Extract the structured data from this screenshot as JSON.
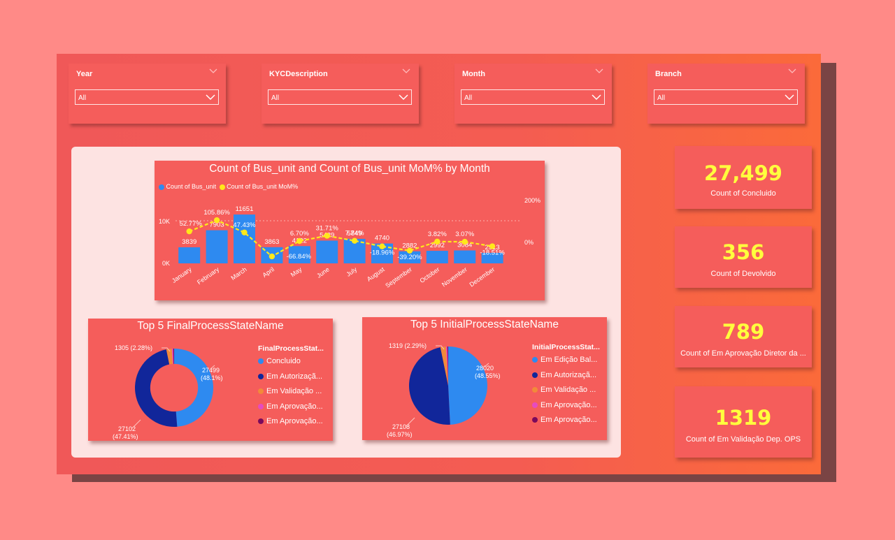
{
  "slicers": [
    {
      "title": "Year",
      "value": "All"
    },
    {
      "title": "KYCDescription",
      "value": "All"
    },
    {
      "title": "Month",
      "value": "All"
    },
    {
      "title": "Branch",
      "value": "All"
    }
  ],
  "colors": {
    "bar": "#2e8af0",
    "line": "#ffe81a",
    "dark_blue": "#11269a",
    "orange": "#f28a3a",
    "pink": "#e64bc0",
    "purple": "#7a0a5c",
    "kpi_value": "#ffff3d"
  },
  "kpis": [
    {
      "value": "27,499",
      "label": "Count of Concluido"
    },
    {
      "value": "356",
      "label": "Count of Devolvido"
    },
    {
      "value": "789",
      "label": "Count of Em Aprovação Diretor da ..."
    },
    {
      "value": "1319",
      "label": "Count of Em Validação Dep. OPS"
    }
  ],
  "combo": {
    "title": "Count of Bus_unit and Count of Bus_unit MoM% by Month",
    "legend": [
      "Count of Bus_unit",
      "Count of Bus_unit MoM%"
    ],
    "y_ticks_left": [
      "0K",
      "10K"
    ],
    "y_ticks_right": [
      "0%",
      "200%"
    ]
  },
  "pie_final": {
    "title": "Top 5 FinalProcessStateName",
    "legend_title": "FinalProcessStat...",
    "legend": [
      "Concluido",
      "Em Autorizaçã...",
      "Em Validação ...",
      "Em Aprovação...",
      "Em Aprovação..."
    ],
    "labels": {
      "a1": "27499",
      "a2": "(48.1%)",
      "b1": "27102",
      "b2": "(47.41%)",
      "c": "1305 (2.28%)"
    }
  },
  "pie_initial": {
    "title": "Top 5 InitialProcessStateName",
    "legend_title": "InitialProcessStat...",
    "legend": [
      "Em Edição Bal...",
      "Em Autorizaçã...",
      "Em Validação ...",
      "Em Aprovação...",
      "Em Aprovação..."
    ],
    "labels": {
      "a1": "28020",
      "a2": "(48.55%)",
      "b1": "27108",
      "b2": "(46.97%)",
      "c": "1319 (2.29%)"
    }
  },
  "chart_data": [
    {
      "type": "bar",
      "title": "Count of Bus_unit and Count of Bus_unit MoM% by Month",
      "categories": [
        "January",
        "February",
        "March",
        "April",
        "May",
        "June",
        "July",
        "August",
        "September",
        "October",
        "November",
        "December"
      ],
      "series": [
        {
          "name": "Count of Bus_unit",
          "values": [
            3839,
            7903,
            11651,
            3863,
            4122,
            5429,
            5849,
            4740,
            2882,
            2992,
            3084,
            2513
          ],
          "labels": [
            "3839",
            "7903",
            "11651",
            "3863",
            "4122",
            "5429",
            "5849",
            "4740",
            "2882",
            "2992",
            "3084",
            "2513"
          ]
        },
        {
          "name": "Count of Bus_unit MoM%",
          "type": "line",
          "values": [
            null,
            105.86,
            47.43,
            -66.84,
            6.7,
            31.71,
            7.74,
            -18.96,
            -39.2,
            3.82,
            3.07,
            -18.51
          ],
          "labels": [
            "52.77%",
            "105.86%",
            "47.43%",
            "",
            "6.70%",
            "31.71%",
            "7.74%",
            "-18.96%",
            "-39.20%",
            "3.82%",
            "3.07%",
            "-18.51%"
          ],
          "extra_labels": [
            "-66.84%"
          ]
        }
      ],
      "y_ticks_left": [
        "0K",
        "10K"
      ],
      "y_ticks_right": [
        "0%",
        "200%"
      ],
      "legend": "top-left"
    },
    {
      "type": "pie",
      "title": "Top 5 FinalProcessStateName",
      "categories": [
        "Concluido",
        "Em Autorizaçã...",
        "Em Validação ...",
        "Em Aprovação...",
        "Em Aprovação..."
      ],
      "values": [
        27499,
        27102,
        1305,
        300,
        200
      ],
      "donut": true
    },
    {
      "type": "pie",
      "title": "Top 5 InitialProcessStateName",
      "categories": [
        "Em Edição Bal...",
        "Em Autorizaçã...",
        "Em Validação ...",
        "Em Aprovação...",
        "Em Aprovação..."
      ],
      "values": [
        28020,
        27108,
        1319,
        300,
        200
      ],
      "donut": false
    }
  ]
}
